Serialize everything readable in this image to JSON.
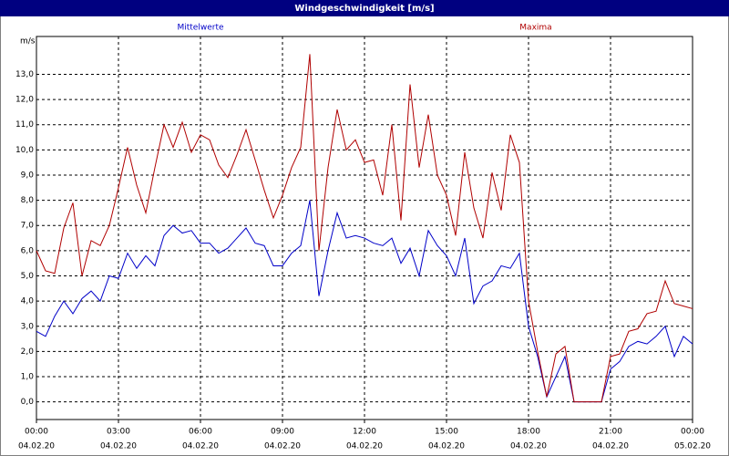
{
  "chart_data": {
    "type": "line",
    "title": "Windgeschwindigkeit [m/s]",
    "y_label": "m/s",
    "x": [
      0,
      20,
      40,
      60,
      80,
      100,
      120,
      140,
      160,
      180,
      200,
      220,
      240,
      260,
      280,
      300,
      320,
      340,
      360,
      380,
      400,
      420,
      440,
      460,
      480,
      500,
      520,
      540,
      560,
      580,
      600,
      620,
      640,
      660,
      680,
      700,
      720,
      740,
      760,
      780,
      800,
      820,
      840,
      860,
      880,
      900,
      920,
      940,
      960,
      980,
      1000,
      1020,
      1040,
      1060,
      1080,
      1100,
      1120,
      1140,
      1160,
      1180,
      1200,
      1220,
      1240,
      1260,
      1280,
      1300,
      1320,
      1340,
      1360,
      1380,
      1400,
      1420,
      1440
    ],
    "series": [
      {
        "name": "Mittelwerte",
        "color": "#0000c8",
        "values": [
          2.8,
          2.6,
          3.4,
          4.0,
          3.5,
          4.1,
          4.4,
          4.0,
          5.0,
          4.9,
          5.9,
          5.3,
          5.8,
          5.4,
          6.6,
          7.0,
          6.7,
          6.8,
          6.3,
          6.3,
          5.9,
          6.1,
          6.5,
          6.9,
          6.3,
          6.2,
          5.4,
          5.4,
          5.9,
          6.2,
          8.0,
          4.2,
          6.0,
          7.5,
          6.5,
          6.6,
          6.5,
          6.3,
          6.2,
          6.5,
          5.5,
          6.1,
          5.0,
          6.8,
          6.2,
          5.8,
          5.0,
          6.5,
          3.9,
          4.6,
          4.8,
          5.4,
          5.3,
          5.9,
          3.0,
          1.8,
          0.2,
          1.0,
          1.8,
          0.0,
          0.0,
          0.0,
          0.0,
          1.3,
          1.6,
          2.2,
          2.4,
          2.3,
          2.6,
          3.0,
          1.8,
          2.6,
          2.3
        ]
      },
      {
        "name": "Maxima",
        "color": "#b00000",
        "values": [
          6.0,
          5.2,
          5.1,
          6.9,
          7.9,
          5.0,
          6.4,
          6.2,
          7.0,
          8.5,
          10.1,
          8.6,
          7.5,
          9.3,
          11.0,
          10.1,
          11.1,
          9.9,
          10.6,
          10.4,
          9.4,
          8.9,
          9.8,
          10.8,
          9.6,
          8.4,
          7.3,
          8.2,
          9.3,
          10.1,
          13.8,
          6.0,
          9.3,
          11.6,
          10.0,
          10.4,
          9.5,
          9.6,
          8.2,
          11.0,
          7.2,
          12.6,
          9.3,
          11.4,
          9.0,
          8.2,
          6.6,
          9.9,
          7.7,
          6.5,
          9.1,
          7.6,
          10.6,
          9.5,
          4.0,
          2.0,
          0.2,
          1.9,
          2.2,
          0.0,
          0.0,
          0.0,
          0.0,
          1.8,
          1.9,
          2.8,
          2.9,
          3.5,
          3.6,
          4.8,
          3.9,
          3.8,
          3.7
        ]
      }
    ],
    "xlim": [
      0,
      1440
    ],
    "xticks": [
      {
        "value": 0,
        "label": "00:00"
      },
      {
        "value": 180,
        "label": "03:00"
      },
      {
        "value": 360,
        "label": "06:00"
      },
      {
        "value": 540,
        "label": "09:00"
      },
      {
        "value": 720,
        "label": "12:00"
      },
      {
        "value": 900,
        "label": "15:00"
      },
      {
        "value": 1080,
        "label": "18:00"
      },
      {
        "value": 1260,
        "label": "21:00"
      },
      {
        "value": 1440,
        "label": "00:00"
      }
    ],
    "xtick_dates": [
      "04.02.20",
      "04.02.20",
      "04.02.20",
      "04.02.20",
      "04.02.20",
      "04.02.20",
      "04.02.20",
      "04.02.20",
      "05.02.20"
    ],
    "ylim": [
      -0.7,
      14.5
    ],
    "yticks": [
      {
        "value": 0,
        "label": "0,0"
      },
      {
        "value": 1,
        "label": "1,0"
      },
      {
        "value": 2,
        "label": "2,0"
      },
      {
        "value": 3,
        "label": "3,0"
      },
      {
        "value": 4,
        "label": "4,0"
      },
      {
        "value": 5,
        "label": "5,0"
      },
      {
        "value": 6,
        "label": "6,0"
      },
      {
        "value": 7,
        "label": "7,0"
      },
      {
        "value": 8,
        "label": "8,0"
      },
      {
        "value": 9,
        "label": "9,0"
      },
      {
        "value": 10,
        "label": "10,0"
      },
      {
        "value": 11,
        "label": "11,0"
      },
      {
        "value": 12,
        "label": "12,0"
      },
      {
        "value": 13,
        "label": "13,0"
      }
    ],
    "grid": true
  }
}
